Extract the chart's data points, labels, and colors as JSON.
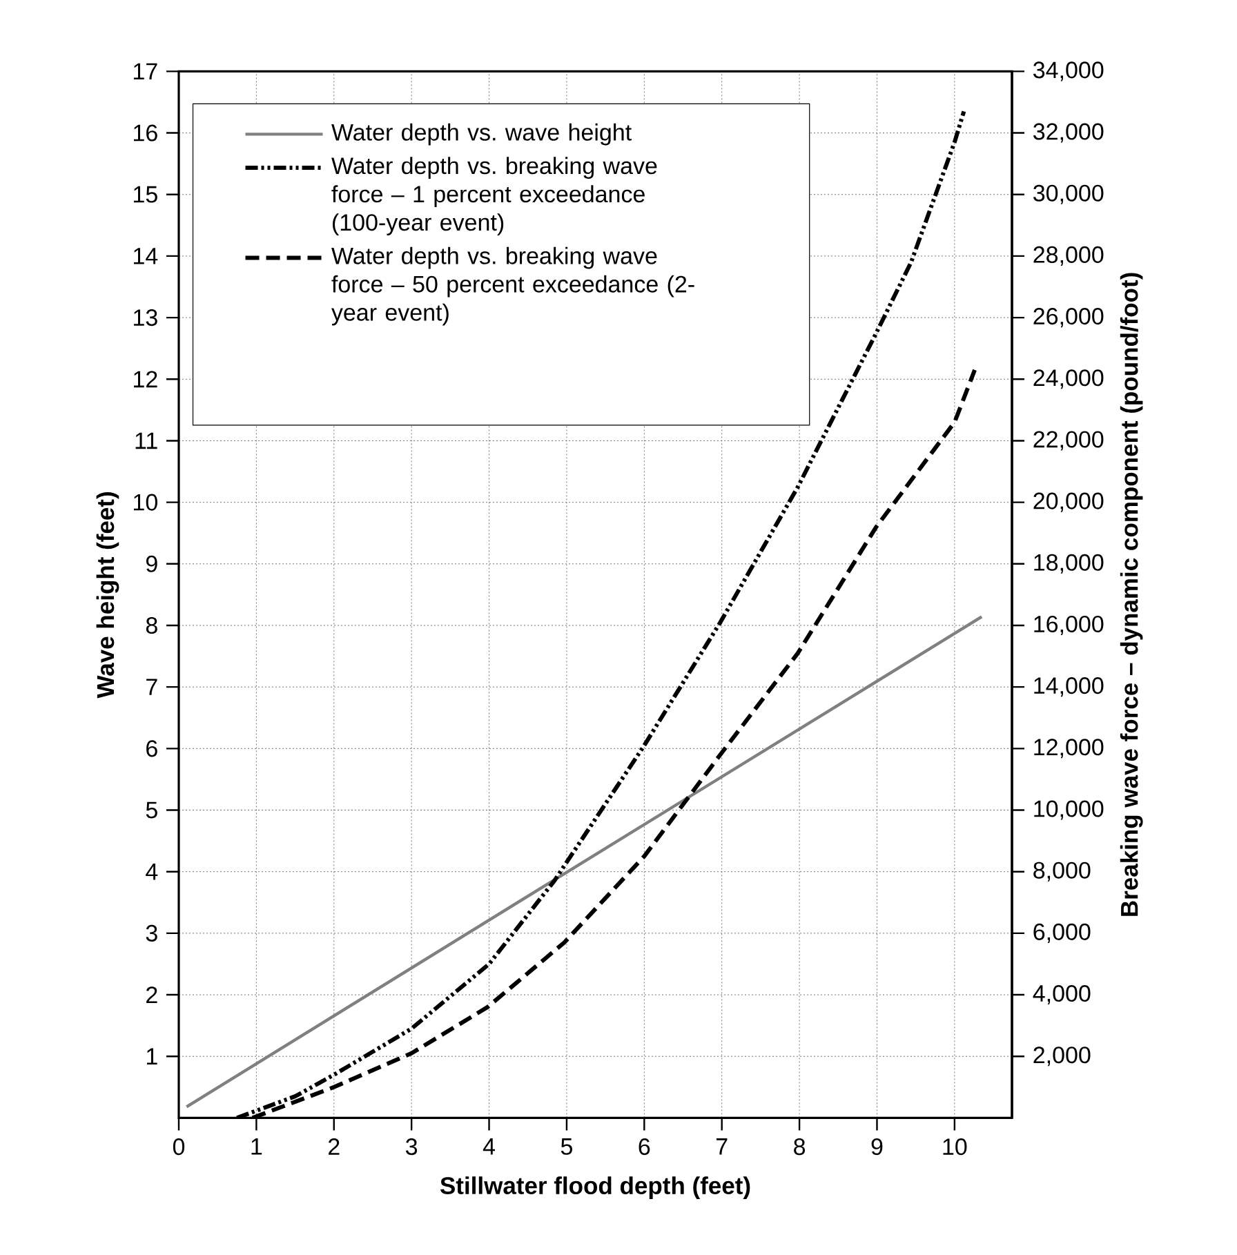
{
  "chart_data": {
    "type": "line",
    "xlabel": "Stillwater flood depth (feet)",
    "ylabel": "Wave height (feet)",
    "y2label": "Breaking wave force – dynamic component (pound/foot)",
    "xlim": [
      0,
      10.74
    ],
    "ylim": [
      0,
      17
    ],
    "y2lim": [
      0,
      34000
    ],
    "xticks": [
      0,
      1,
      2,
      3,
      4,
      5,
      6,
      7,
      8,
      9,
      10
    ],
    "yticks": [
      1,
      2,
      3,
      4,
      5,
      6,
      7,
      8,
      9,
      10,
      11,
      12,
      13,
      14,
      15,
      16,
      17
    ],
    "y2ticks": [
      {
        "value": 2000,
        "label": "2,000"
      },
      {
        "value": 4000,
        "label": "4,000"
      },
      {
        "value": 6000,
        "label": "6,000"
      },
      {
        "value": 8000,
        "label": "8,000"
      },
      {
        "value": 10000,
        "label": "10,000"
      },
      {
        "value": 12000,
        "label": "12,000"
      },
      {
        "value": 14000,
        "label": "14,000"
      },
      {
        "value": 16000,
        "label": "16,000"
      },
      {
        "value": 18000,
        "label": "18,000"
      },
      {
        "value": 20000,
        "label": "20,000"
      },
      {
        "value": 22000,
        "label": "22,000"
      },
      {
        "value": 24000,
        "label": "24,000"
      },
      {
        "value": 26000,
        "label": "26,000"
      },
      {
        "value": 28000,
        "label": "28,000"
      },
      {
        "value": 30000,
        "label": "30,000"
      },
      {
        "value": 32000,
        "label": "32,000"
      },
      {
        "value": 34000,
        "label": "34,000"
      }
    ],
    "grid": true,
    "legend": "top left",
    "series": [
      {
        "name": "Water depth vs. wave height",
        "color": "#808080",
        "line_style": "solid",
        "x": [
          0.1,
          5,
          10.35
        ],
        "values": [
          0.18,
          3.99,
          8.14
        ]
      },
      {
        "name": "Water depth vs. breaking wave force – 1 percent exceedance (100-year event)",
        "color": "#000000",
        "line_style": "dashdotdotted",
        "axis": "y2",
        "x": [
          0.75,
          1.5,
          2,
          3,
          4,
          4.84,
          6,
          6.98,
          7.98,
          8.99,
          9.44,
          10.0,
          10.12
        ],
        "values": [
          0,
          700,
          1400,
          2900,
          5000,
          7700,
          12100,
          16100,
          20500,
          25500,
          27800,
          31700,
          32700
        ]
      },
      {
        "name": "Water depth vs. breaking wave force – 50 percent exceedance (2-year event)",
        "color": "#000000",
        "line_style": "dashed",
        "axis": "y2",
        "x": [
          0.95,
          2,
          3,
          3.98,
          4.97,
          6,
          6.98,
          7.98,
          8.99,
          10.0,
          10.26
        ],
        "values": [
          0,
          1000,
          2100,
          3600,
          5700,
          8500,
          11800,
          15100,
          19200,
          22600,
          24300
        ]
      }
    ]
  }
}
